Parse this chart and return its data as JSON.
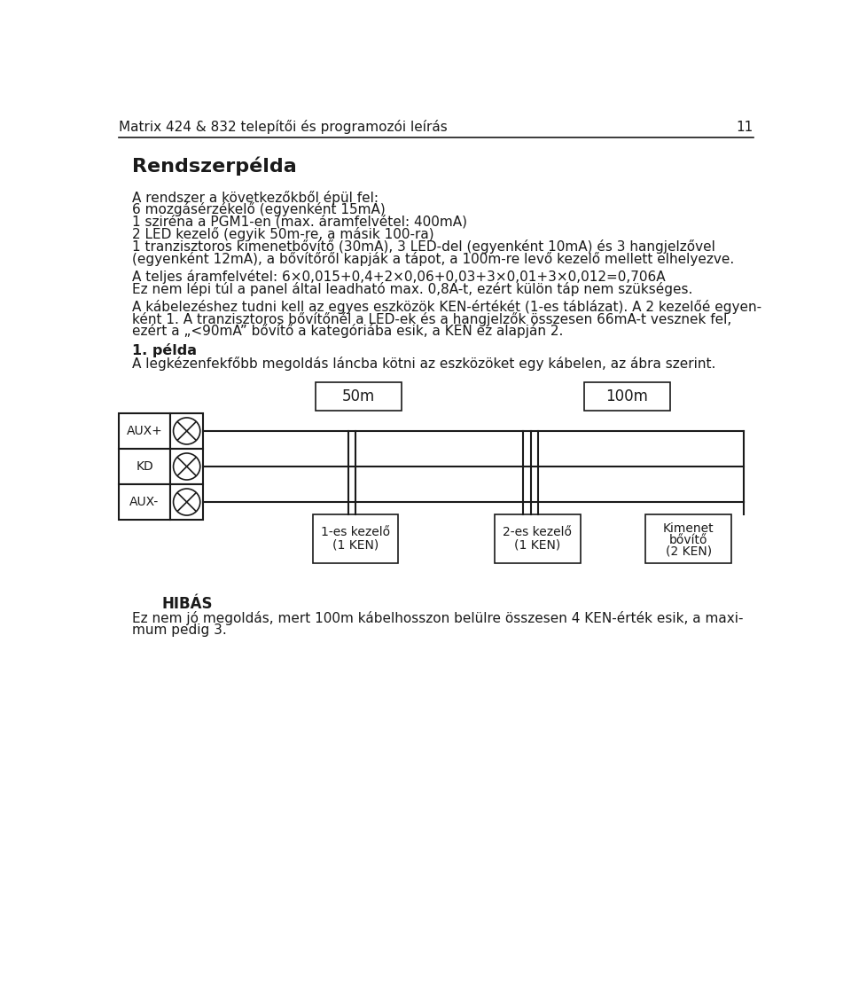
{
  "header_text": "Matrix 424 & 832 telepítői és programozói leírás",
  "header_page": "11",
  "title": "Rendszerpélda",
  "bg_color": "#ffffff",
  "text_color": "#1a1a1a",
  "line_color": "#1a1a1a",
  "box_color": "#ffffff",
  "p1_lines": [
    "A rendszer a következőkből épül fel:",
    "6 mozgásérzékelő (egyenként 15mA)",
    "1 sziréna a PGM1-en (max. áramfelvétel: 400mA)",
    "2 LED kezelő (egyik 50m-re, a másik 100-ra)",
    "1 tranzisztoros kimenetbővítő (30mA), 3 LED-del (egyenként 10mA) és 3 hangjelzővel",
    "(egyenként 12mA), a bővítőről kapják a tápot, a 100m-re levő kezelő mellett elhelyezve."
  ],
  "p2_lines": [
    "A teljes áramfelvétel: 6×0,015+0,4+2×0,06+0,03+3×0,01+3×0,012=0,706A",
    "Ez nem lépi túl a panel által leadható max. 0,8A-t, ezért külön táp nem szükséges."
  ],
  "p3_lines": [
    "A kábelezéshez tudni kell az egyes eszközök KEN-értékét (1-es táblázat). A 2 kezelőé egyen-",
    "ként 1. A tranzisztoros bővítőnél a LED-ek és a hangjelzők összesen 66mA-t vesznek fel,",
    "ezért a „<90mA” bővítő a kategóriába esik, a KEN ez alapján 2."
  ],
  "example_title": "1. példa",
  "example_text": "A legkézenfekfőbb megoldás láncba kötni az eszközöket egy kábelen, az ábra szerint.",
  "hibas_title": "HIBÁS",
  "hibas_lines": [
    "Ez nem jó megoldás, mert 100m kábelhosszon belülre összesen 4 KEN-érték esik, a maxi-",
    "mum pedig 3."
  ],
  "labels": [
    "AUX+",
    "KD",
    "AUX-"
  ],
  "dev1_label1": "1-es kezelő",
  "dev1_label2": "(1 KEN)",
  "dev2_label1": "2-es kezelő",
  "dev2_label2": "(1 KEN)",
  "dev3_label1": "Kimenet",
  "dev3_label2": "bővítő",
  "dev3_label3": "(2 KEN)",
  "dist1": "50m",
  "dist2": "100m"
}
